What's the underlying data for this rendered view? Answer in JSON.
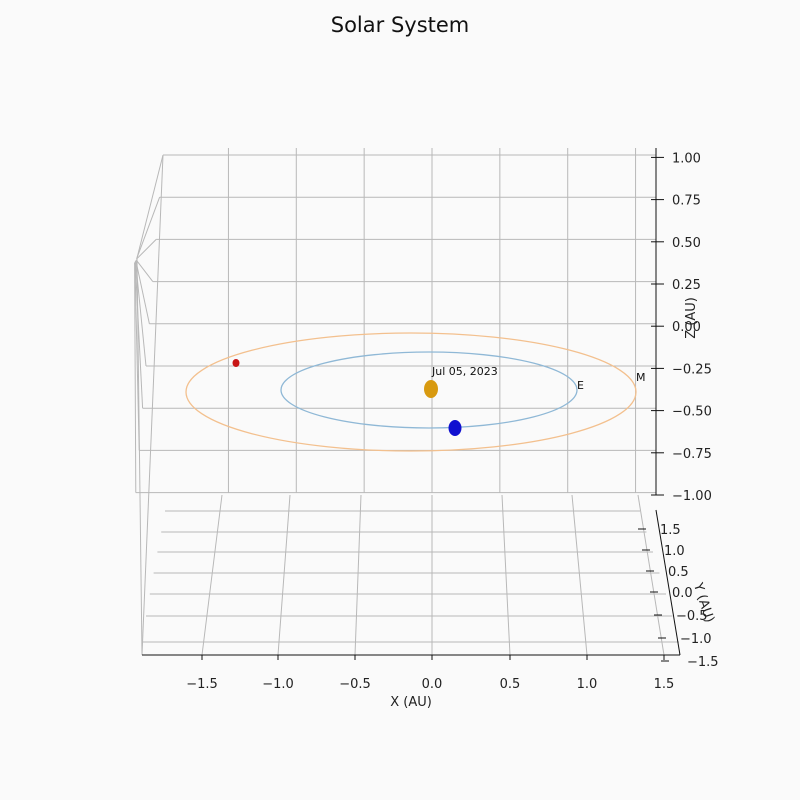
{
  "chart_data": {
    "type": "scatter",
    "projection": "3d",
    "title": "Solar System",
    "xlabel": "X (AU)",
    "ylabel": "Y (AU)",
    "zlabel": "Z (AU)",
    "xlim": [
      -1.5,
      1.5
    ],
    "ylim": [
      -1.5,
      1.5
    ],
    "zlim": [
      -1.0,
      1.0
    ],
    "x_ticks": [
      "−1.5",
      "−1.0",
      "−0.5",
      "0.0",
      "0.5",
      "1.0",
      "1.5"
    ],
    "y_ticks": [
      "−1.5",
      "−1.0",
      "−0.5",
      "0.0",
      "0.5",
      "1.0",
      "1.5"
    ],
    "z_ticks": [
      "−1.00",
      "−0.75",
      "−0.50",
      "−0.25",
      "0.00",
      "0.25",
      "0.50",
      "0.75",
      "1.00"
    ],
    "grid": true,
    "date_label": "Jul 05, 2023",
    "orbits": [
      {
        "radius": 1.0,
        "color": "#8fb8d6"
      },
      {
        "radius": 1.52,
        "color": "#f3c08e"
      }
    ],
    "bodies": [
      {
        "x": 0.0,
        "y": 0.0,
        "z": 0.0,
        "color": "#d89a10"
      },
      {
        "x": 0.17,
        "y": -0.98,
        "z": 0.0,
        "color": "#1010d0"
      },
      {
        "x": -1.33,
        "y": 0.75,
        "z": 0.0,
        "color": "#c81515"
      }
    ],
    "labels": [
      {
        "text": "E",
        "x": 0.97,
        "y": 0.24,
        "z": 0.0
      },
      {
        "text": "M",
        "x": 1.38,
        "y": 0.62,
        "z": 0.0
      }
    ]
  }
}
